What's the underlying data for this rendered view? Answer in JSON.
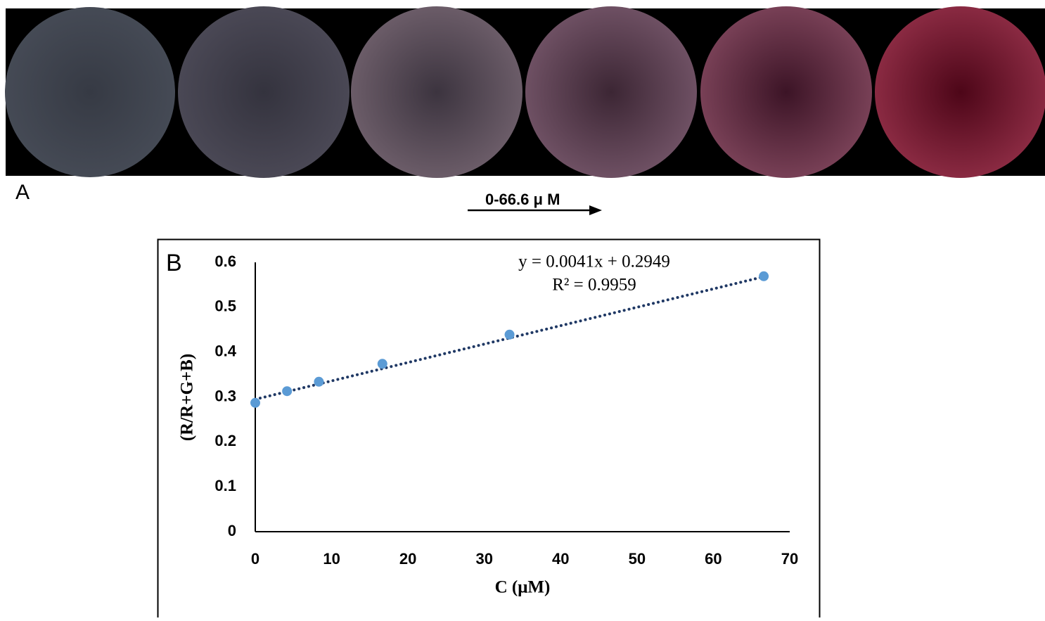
{
  "panel_a": {
    "label": "A",
    "range_label": "0-66.6  μ M"
  },
  "chart_data": {
    "type": "scatter",
    "panel_label": "B",
    "x_label": "C (μM)",
    "y_label": "(R/R+G+B)",
    "x": [
      0,
      4.16,
      8.33,
      16.65,
      33.3,
      66.6
    ],
    "values": [
      0.287,
      0.313,
      0.334,
      0.374,
      0.439,
      0.569
    ],
    "color": "#5b9bd5",
    "trendline": {
      "slope": 0.0041,
      "intercept": 0.2949,
      "color": "#1f3864",
      "equation": "y = 0.0041x + 0.2949",
      "r2": "R² = 0.9959"
    },
    "xlim": [
      0,
      70
    ],
    "xticks": [
      0,
      10,
      20,
      30,
      40,
      50,
      60,
      70
    ],
    "ylim": [
      0,
      0.6
    ],
    "yticks": [
      0,
      0.1,
      0.2,
      0.3,
      0.4,
      0.5,
      0.6
    ],
    "grid": false
  }
}
